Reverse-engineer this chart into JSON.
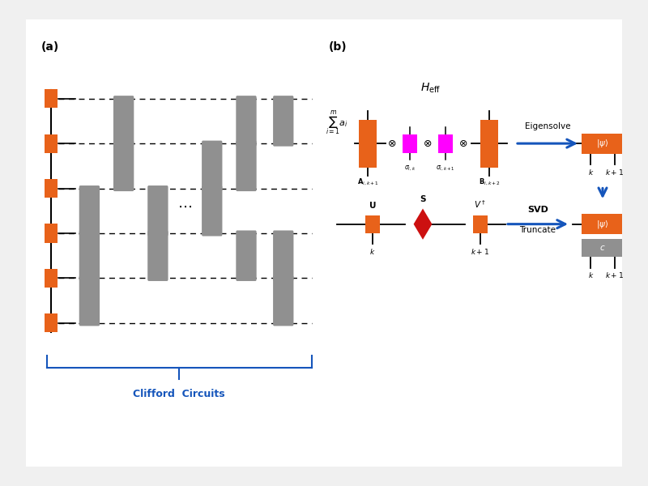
{
  "bg_color": "#f0f0f0",
  "panel_bg": "#ffffff",
  "orange_color": "#E8621A",
  "gray_color": "#909090",
  "magenta_color": "#FF00FF",
  "red_color": "#CC1010",
  "blue_color": "#1555BB",
  "black_color": "#000000",
  "white_color": "#ffffff",
  "label_a": "(a)",
  "label_b": "(b)",
  "clifford_label": "Clifford  Circuits"
}
